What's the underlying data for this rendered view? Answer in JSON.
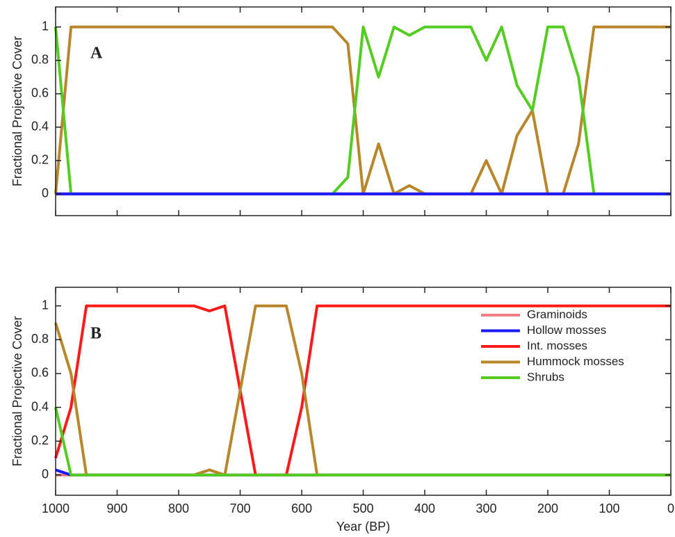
{
  "chart_data": [
    {
      "type": "line",
      "annotation": "A",
      "ylabel": "Fractional Projective Cover",
      "xlim": [
        1000,
        0
      ],
      "ylim": [
        -0.13,
        1.12
      ],
      "xticks": [
        1000,
        900,
        800,
        700,
        600,
        500,
        400,
        300,
        200,
        100,
        0
      ],
      "show_xtick_labels": false,
      "yticks": [
        0,
        0.2,
        0.4,
        0.6,
        0.8,
        1
      ],
      "legend": false,
      "x": [
        1000,
        975,
        950,
        925,
        900,
        875,
        850,
        825,
        800,
        775,
        750,
        725,
        700,
        675,
        650,
        625,
        600,
        575,
        550,
        525,
        500,
        475,
        450,
        425,
        400,
        375,
        350,
        325,
        300,
        275,
        250,
        225,
        200,
        175,
        150,
        125,
        100,
        75,
        50,
        25,
        0
      ],
      "series": [
        {
          "color": "#f08080",
          "values": [
            0,
            0,
            0,
            0,
            0,
            0,
            0,
            0,
            0,
            0,
            0,
            0,
            0,
            0,
            0,
            0,
            0,
            0,
            0,
            0,
            0,
            0,
            0,
            0,
            0,
            0,
            0,
            0,
            0,
            0,
            0,
            0,
            0,
            0,
            0,
            0,
            0,
            0,
            0,
            0,
            0
          ]
        },
        {
          "color": "#ff1a1a",
          "values": [
            0,
            0,
            0,
            0,
            0,
            0,
            0,
            0,
            0,
            0,
            0,
            0,
            0,
            0,
            0,
            0,
            0,
            0,
            0,
            0,
            0,
            0,
            0,
            0,
            0,
            0,
            0,
            0,
            0,
            0,
            0,
            0,
            0,
            0,
            0,
            0,
            0,
            0,
            0,
            0,
            0
          ]
        },
        {
          "color": "#b8862b",
          "values": [
            0,
            1,
            1,
            1,
            1,
            1,
            1,
            1,
            1,
            1,
            1,
            1,
            1,
            1,
            1,
            1,
            1,
            1,
            1,
            0.9,
            0,
            0.3,
            0,
            0.05,
            0,
            0,
            0,
            0,
            0.2,
            0,
            0.35,
            0.5,
            0,
            0,
            0.3,
            1,
            1,
            1,
            1,
            1,
            1
          ]
        },
        {
          "color": "#55cc22",
          "values": [
            1,
            0,
            0,
            0,
            0,
            0,
            0,
            0,
            0,
            0,
            0,
            0,
            0,
            0,
            0,
            0,
            0,
            0,
            0,
            0.1,
            1,
            0.7,
            1,
            0.95,
            1,
            1,
            1,
            1,
            0.8,
            1,
            0.65,
            0.5,
            1,
            1,
            0.7,
            0,
            0,
            0,
            0,
            0,
            0
          ]
        },
        {
          "color": "#1a1aff",
          "values": [
            0,
            0,
            0,
            0,
            0,
            0,
            0,
            0,
            0,
            0,
            0,
            0,
            0,
            0,
            0,
            0,
            0,
            0,
            0,
            0,
            0,
            0,
            0,
            0,
            0,
            0,
            0,
            0,
            0,
            0,
            0,
            0,
            0,
            0,
            0,
            0,
            0,
            0,
            0,
            0,
            0
          ]
        }
      ]
    },
    {
      "type": "line",
      "annotation": "B",
      "ylabel": "Fractional Projective Cover",
      "xlabel": "Year (BP)",
      "xlim": [
        1000,
        0
      ],
      "ylim": [
        -0.12,
        1.11
      ],
      "xticks": [
        1000,
        900,
        800,
        700,
        600,
        500,
        400,
        300,
        200,
        100,
        0
      ],
      "show_xtick_labels": true,
      "yticks": [
        0,
        0.2,
        0.4,
        0.6,
        0.8,
        1
      ],
      "legend": true,
      "x": [
        1000,
        975,
        950,
        925,
        900,
        875,
        850,
        825,
        800,
        775,
        750,
        725,
        700,
        675,
        650,
        625,
        600,
        575,
        550,
        525,
        500,
        475,
        450,
        425,
        400,
        375,
        350,
        325,
        300,
        275,
        250,
        225,
        200,
        175,
        150,
        125,
        100,
        75,
        50,
        25,
        0
      ],
      "series": [
        {
          "name": "Graminoids",
          "color": "#f08080",
          "values": [
            0,
            0,
            0,
            0,
            0,
            0,
            0,
            0,
            0,
            0,
            0,
            0,
            0,
            0,
            0,
            0,
            0,
            0,
            0,
            0,
            0,
            0,
            0,
            0,
            0,
            0,
            0,
            0,
            0,
            0,
            0,
            0,
            0,
            0,
            0,
            0,
            0,
            0,
            0,
            0,
            0
          ]
        },
        {
          "name": "Hollow mosses",
          "color": "#1a1aff",
          "values": [
            0.03,
            0,
            0,
            0,
            0,
            0,
            0,
            0,
            0,
            0,
            0,
            0,
            0,
            0,
            0,
            0,
            0,
            0,
            0,
            0,
            0,
            0,
            0,
            0,
            0,
            0,
            0,
            0,
            0,
            0,
            0,
            0,
            0,
            0,
            0,
            0,
            0,
            0,
            0,
            0,
            0
          ]
        },
        {
          "name": "Int. mosses",
          "color": "#ff1a1a",
          "values": [
            0.1,
            0.4,
            1,
            1,
            1,
            1,
            1,
            1,
            1,
            1,
            0.97,
            1,
            0.5,
            0,
            0,
            0,
            0.4,
            1,
            1,
            1,
            1,
            1,
            1,
            1,
            1,
            1,
            1,
            1,
            1,
            1,
            1,
            1,
            1,
            1,
            1,
            1,
            1,
            1,
            1,
            1,
            1
          ]
        },
        {
          "name": "Hummock mosses",
          "color": "#b8862b",
          "values": [
            0.9,
            0.6,
            0,
            0,
            0,
            0,
            0,
            0,
            0,
            0,
            0.03,
            0,
            0.5,
            1,
            1,
            1,
            0.6,
            0,
            0,
            0,
            0,
            0,
            0,
            0,
            0,
            0,
            0,
            0,
            0,
            0,
            0,
            0,
            0,
            0,
            0,
            0,
            0,
            0,
            0,
            0,
            0
          ]
        },
        {
          "name": "Shrubs",
          "color": "#55cc22",
          "values": [
            0.4,
            0,
            0,
            0,
            0,
            0,
            0,
            0,
            0,
            0,
            0,
            0,
            0,
            0,
            0,
            0,
            0,
            0,
            0,
            0,
            0,
            0,
            0,
            0,
            0,
            0,
            0,
            0,
            0,
            0,
            0,
            0,
            0,
            0,
            0,
            0,
            0,
            0,
            0,
            0,
            0
          ]
        }
      ]
    }
  ]
}
